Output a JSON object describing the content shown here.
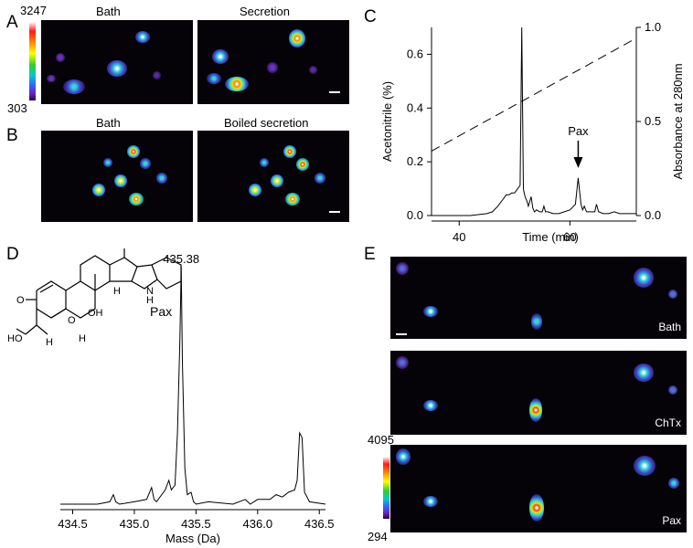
{
  "panels": {
    "a": {
      "letter": "A",
      "titles": [
        "Bath",
        "Secretion"
      ],
      "cbar_max": "3247",
      "cbar_min": "303"
    },
    "b": {
      "letter": "B",
      "titles": [
        "Bath",
        "Boiled secretion"
      ]
    },
    "c": {
      "letter": "C"
    },
    "d": {
      "letter": "D"
    },
    "e": {
      "letter": "E",
      "labels": [
        "Bath",
        "ChTx",
        "Pax"
      ],
      "cbar_max": "4095",
      "cbar_min": "294"
    }
  },
  "chart_data": [
    {
      "type": "line",
      "panel": "C",
      "xlabel": "Time (min)",
      "ylabel": "Acetonitrile (%)",
      "y2label": "Absorbance at 280nm",
      "xlim": [
        35,
        72
      ],
      "ylim": [
        0,
        0.7
      ],
      "y2lim": [
        0,
        1.0
      ],
      "xticks": [
        "40",
        "60"
      ],
      "yticks": [
        "0.0",
        "0.2",
        "0.4",
        "0.6"
      ],
      "y2ticks": [
        "0.0",
        "0.5",
        "1.0"
      ],
      "annotation": "Pax",
      "series": [
        {
          "style": "solid",
          "axis": "right",
          "x": [
            35,
            42,
            45,
            46,
            47,
            48,
            48.5,
            49,
            49.5,
            50,
            50.5,
            51,
            51.3,
            51.6,
            51.9,
            52.2,
            52.5,
            53,
            53.3,
            53.6,
            54,
            54.5,
            55,
            55.3,
            55.6,
            56,
            57,
            58,
            59,
            60,
            61,
            61.5,
            62,
            62.3,
            62.6,
            63,
            64,
            64.5,
            64.8,
            65.2,
            66,
            67,
            68,
            69,
            70,
            71,
            72
          ],
          "y": [
            0.0,
            0.0,
            0.01,
            0.02,
            0.05,
            0.09,
            0.11,
            0.11,
            0.12,
            0.12,
            0.14,
            0.16,
            1.0,
            0.14,
            0.1,
            0.08,
            0.05,
            0.1,
            0.04,
            0.02,
            0.03,
            0.02,
            0.02,
            0.05,
            0.02,
            0.02,
            0.01,
            0.01,
            0.02,
            0.03,
            0.06,
            0.2,
            0.06,
            0.03,
            0.05,
            0.02,
            0.02,
            0.02,
            0.06,
            0.02,
            0.01,
            0.01,
            0.02,
            0.01,
            0.01,
            0.01,
            0.01
          ]
        },
        {
          "style": "dashed",
          "axis": "left",
          "x": [
            35,
            72
          ],
          "y": [
            0.24,
            0.66
          ]
        }
      ]
    },
    {
      "type": "line",
      "panel": "D",
      "xlabel": "Mass (Da)",
      "xlim": [
        434.4,
        436.55
      ],
      "xticks": [
        "434.5",
        "435.0",
        "435.5",
        "436.0",
        "436.5"
      ],
      "peak_label": "435.38",
      "compound_label": "Pax",
      "series": [
        {
          "style": "solid",
          "x": [
            434.4,
            434.7,
            434.8,
            434.83,
            434.85,
            434.88,
            435.0,
            435.1,
            435.14,
            435.16,
            435.18,
            435.25,
            435.28,
            435.3,
            435.33,
            435.35,
            435.37,
            435.38,
            435.39,
            435.41,
            435.43,
            435.46,
            435.48,
            435.5,
            435.6,
            435.8,
            435.9,
            435.92,
            435.94,
            436.0,
            436.1,
            436.15,
            436.2,
            436.25,
            436.3,
            436.32,
            436.34,
            436.36,
            436.38,
            436.42,
            436.55
          ],
          "y": [
            0.0,
            0.0,
            0.01,
            0.04,
            0.01,
            0.0,
            0.01,
            0.02,
            0.07,
            0.02,
            0.01,
            0.06,
            0.1,
            0.06,
            0.08,
            0.3,
            0.7,
            1.0,
            0.6,
            0.15,
            0.04,
            0.05,
            0.01,
            0.0,
            0.01,
            0.0,
            0.02,
            0.01,
            0.0,
            0.02,
            0.02,
            0.04,
            0.03,
            0.05,
            0.06,
            0.1,
            0.3,
            0.28,
            0.05,
            0.01,
            0.0
          ]
        }
      ]
    }
  ]
}
